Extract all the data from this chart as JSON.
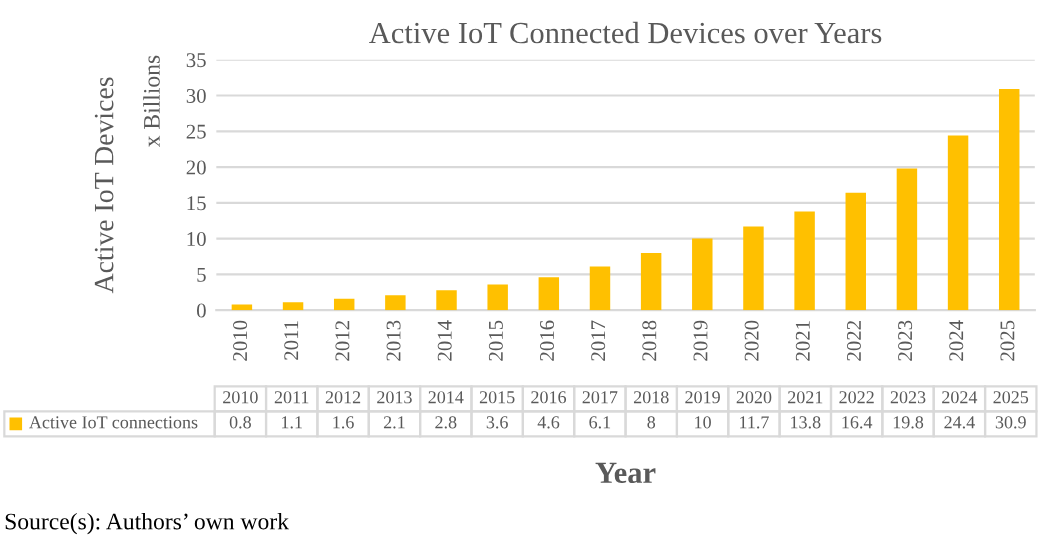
{
  "chart_data": {
    "type": "bar",
    "title": "Active IoT Connected Devices over Years",
    "ylabel": "Active IoT Devices",
    "xlabel": "Year",
    "annotations": [
      "x Billions",
      "Source(s): Authors’ own work"
    ],
    "categories": [
      "2010",
      "2011",
      "2012",
      "2013",
      "2014",
      "2015",
      "2016",
      "2017",
      "2018",
      "2019",
      "2020",
      "2021",
      "2022",
      "2023",
      "2024",
      "2025"
    ],
    "series": [
      {
        "name": "Active IoT connections",
        "color": "#ffc000",
        "values": [
          0.8,
          1.1,
          1.6,
          2.1,
          2.8,
          3.6,
          4.6,
          6.1,
          8,
          10,
          11.7,
          13.8,
          16.4,
          19.8,
          24.4,
          30.9
        ]
      }
    ],
    "ylim": [
      0,
      35
    ],
    "yticks": [
      0,
      5,
      10,
      15,
      20,
      25,
      30,
      35
    ],
    "grid": "y",
    "legend": "bottom",
    "data_labels": true
  }
}
